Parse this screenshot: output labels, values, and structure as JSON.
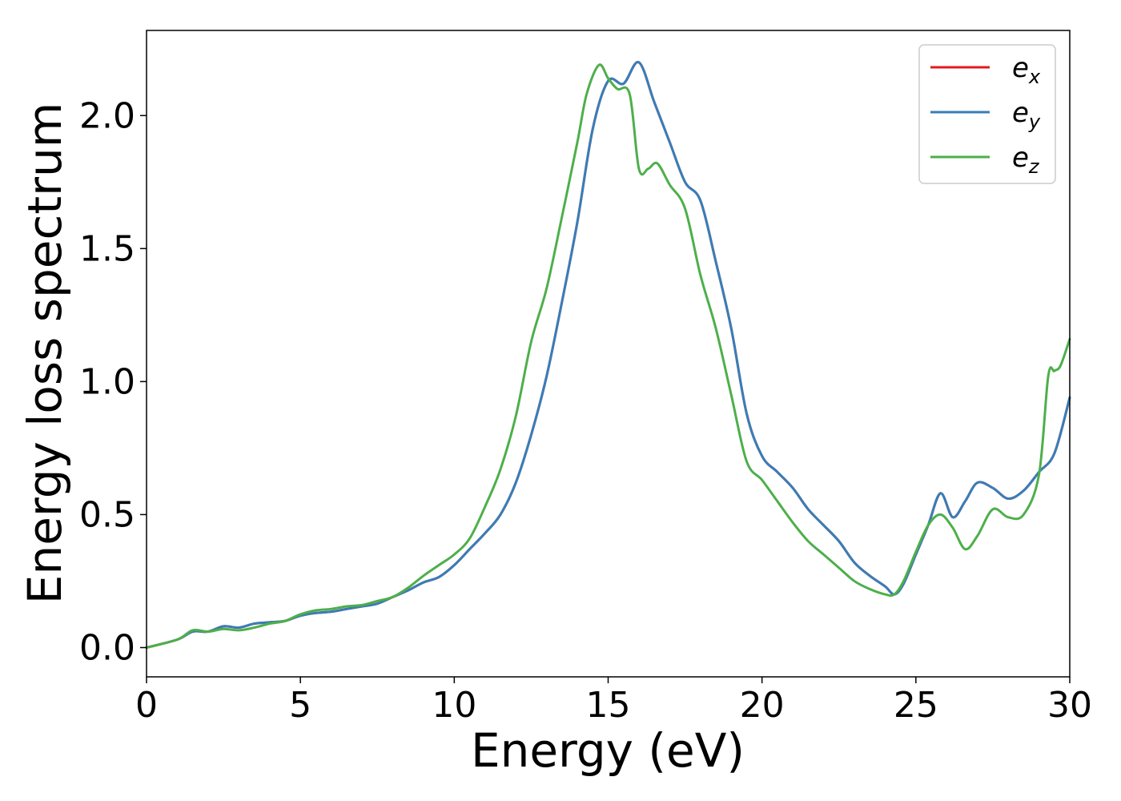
{
  "chart_data": {
    "type": "line",
    "title": "",
    "xlabel": "Energy (eV)",
    "ylabel": "Energy loss spectrum",
    "xlim": [
      0,
      30
    ],
    "ylim": [
      -0.11,
      2.32
    ],
    "xticks": [
      0,
      5,
      10,
      15,
      20,
      25,
      30
    ],
    "xtick_labels": [
      "0",
      "5",
      "10",
      "15",
      "20",
      "25",
      "30"
    ],
    "yticks": [
      0.0,
      0.5,
      1.0,
      1.5,
      2.0
    ],
    "ytick_labels": [
      "0.0",
      "0.5",
      "1.0",
      "1.5",
      "2.0"
    ],
    "grid": false,
    "legend_position": "top-right",
    "series": [
      {
        "name": "e_x",
        "legend_base": "e",
        "legend_sub": "x",
        "color": "#e41a1c",
        "x": [
          0,
          1,
          1.5,
          2,
          2.5,
          3,
          3.5,
          4,
          4.5,
          5,
          5.5,
          6,
          6.5,
          7,
          7.5,
          8,
          8.5,
          9,
          9.5,
          10,
          10.5,
          11,
          11.5,
          12,
          12.5,
          13,
          13.5,
          14,
          14.5,
          15,
          15.5,
          16,
          16.5,
          17,
          17.5,
          18,
          18.5,
          19,
          19.5,
          20,
          20.5,
          21,
          21.5,
          22,
          22.5,
          23,
          23.5,
          24,
          24.3,
          24.6,
          25,
          25.4,
          25.8,
          26.2,
          26.6,
          27,
          27.5,
          28,
          28.5,
          29,
          29.5,
          30
        ],
        "y": [
          0.0,
          0.03,
          0.06,
          0.06,
          0.08,
          0.075,
          0.09,
          0.095,
          0.1,
          0.12,
          0.13,
          0.135,
          0.145,
          0.155,
          0.165,
          0.19,
          0.215,
          0.245,
          0.265,
          0.31,
          0.37,
          0.43,
          0.5,
          0.62,
          0.8,
          1.02,
          1.3,
          1.6,
          1.95,
          2.13,
          2.12,
          2.2,
          2.05,
          1.9,
          1.75,
          1.68,
          1.45,
          1.2,
          0.88,
          0.72,
          0.66,
          0.6,
          0.52,
          0.46,
          0.4,
          0.32,
          0.27,
          0.23,
          0.2,
          0.24,
          0.35,
          0.46,
          0.58,
          0.49,
          0.55,
          0.62,
          0.6,
          0.56,
          0.59,
          0.66,
          0.73,
          0.94
        ]
      },
      {
        "name": "e_y",
        "legend_base": "e",
        "legend_sub": "y",
        "color": "#377eb8",
        "x": [
          0,
          1,
          1.5,
          2,
          2.5,
          3,
          3.5,
          4,
          4.5,
          5,
          5.5,
          6,
          6.5,
          7,
          7.5,
          8,
          8.5,
          9,
          9.5,
          10,
          10.5,
          11,
          11.5,
          12,
          12.5,
          13,
          13.5,
          14,
          14.5,
          15,
          15.5,
          16,
          16.5,
          17,
          17.5,
          18,
          18.5,
          19,
          19.5,
          20,
          20.5,
          21,
          21.5,
          22,
          22.5,
          23,
          23.5,
          24,
          24.3,
          24.6,
          25,
          25.4,
          25.8,
          26.2,
          26.6,
          27,
          27.5,
          28,
          28.5,
          29,
          29.5,
          30
        ],
        "y": [
          0.0,
          0.03,
          0.06,
          0.06,
          0.08,
          0.075,
          0.09,
          0.095,
          0.1,
          0.12,
          0.13,
          0.135,
          0.145,
          0.155,
          0.165,
          0.19,
          0.215,
          0.245,
          0.265,
          0.31,
          0.37,
          0.43,
          0.5,
          0.62,
          0.8,
          1.02,
          1.3,
          1.6,
          1.95,
          2.13,
          2.12,
          2.2,
          2.05,
          1.9,
          1.75,
          1.68,
          1.45,
          1.2,
          0.88,
          0.72,
          0.66,
          0.6,
          0.52,
          0.46,
          0.4,
          0.32,
          0.27,
          0.23,
          0.2,
          0.24,
          0.35,
          0.46,
          0.58,
          0.49,
          0.55,
          0.62,
          0.6,
          0.56,
          0.59,
          0.66,
          0.73,
          0.94
        ]
      },
      {
        "name": "e_z",
        "legend_base": "e",
        "legend_sub": "z",
        "color": "#4daf4a",
        "x": [
          0,
          1,
          1.5,
          2,
          2.5,
          3,
          3.5,
          4,
          4.5,
          5,
          5.5,
          6,
          6.5,
          7,
          7.5,
          8,
          8.5,
          9,
          9.5,
          10,
          10.5,
          11,
          11.5,
          12,
          12.5,
          13,
          13.5,
          14,
          14.3,
          14.7,
          15,
          15.3,
          15.7,
          16,
          16.3,
          16.6,
          17,
          17.5,
          18,
          18.5,
          19,
          19.5,
          20,
          20.5,
          21,
          21.5,
          22,
          22.5,
          23,
          23.5,
          24,
          24.3,
          24.6,
          25,
          25.4,
          25.8,
          26.2,
          26.6,
          27,
          27.5,
          28,
          28.5,
          29,
          29.3,
          29.5,
          29.7,
          30
        ],
        "y": [
          0.0,
          0.03,
          0.065,
          0.06,
          0.07,
          0.065,
          0.075,
          0.09,
          0.1,
          0.125,
          0.14,
          0.145,
          0.155,
          0.16,
          0.175,
          0.19,
          0.225,
          0.27,
          0.31,
          0.35,
          0.41,
          0.53,
          0.67,
          0.87,
          1.15,
          1.35,
          1.62,
          1.9,
          2.08,
          2.19,
          2.14,
          2.1,
          2.08,
          1.8,
          1.8,
          1.82,
          1.74,
          1.65,
          1.4,
          1.2,
          0.95,
          0.7,
          0.63,
          0.55,
          0.47,
          0.4,
          0.35,
          0.3,
          0.25,
          0.22,
          0.2,
          0.2,
          0.25,
          0.36,
          0.46,
          0.5,
          0.45,
          0.37,
          0.42,
          0.52,
          0.49,
          0.5,
          0.65,
          1.02,
          1.04,
          1.06,
          1.16
        ]
      }
    ]
  }
}
